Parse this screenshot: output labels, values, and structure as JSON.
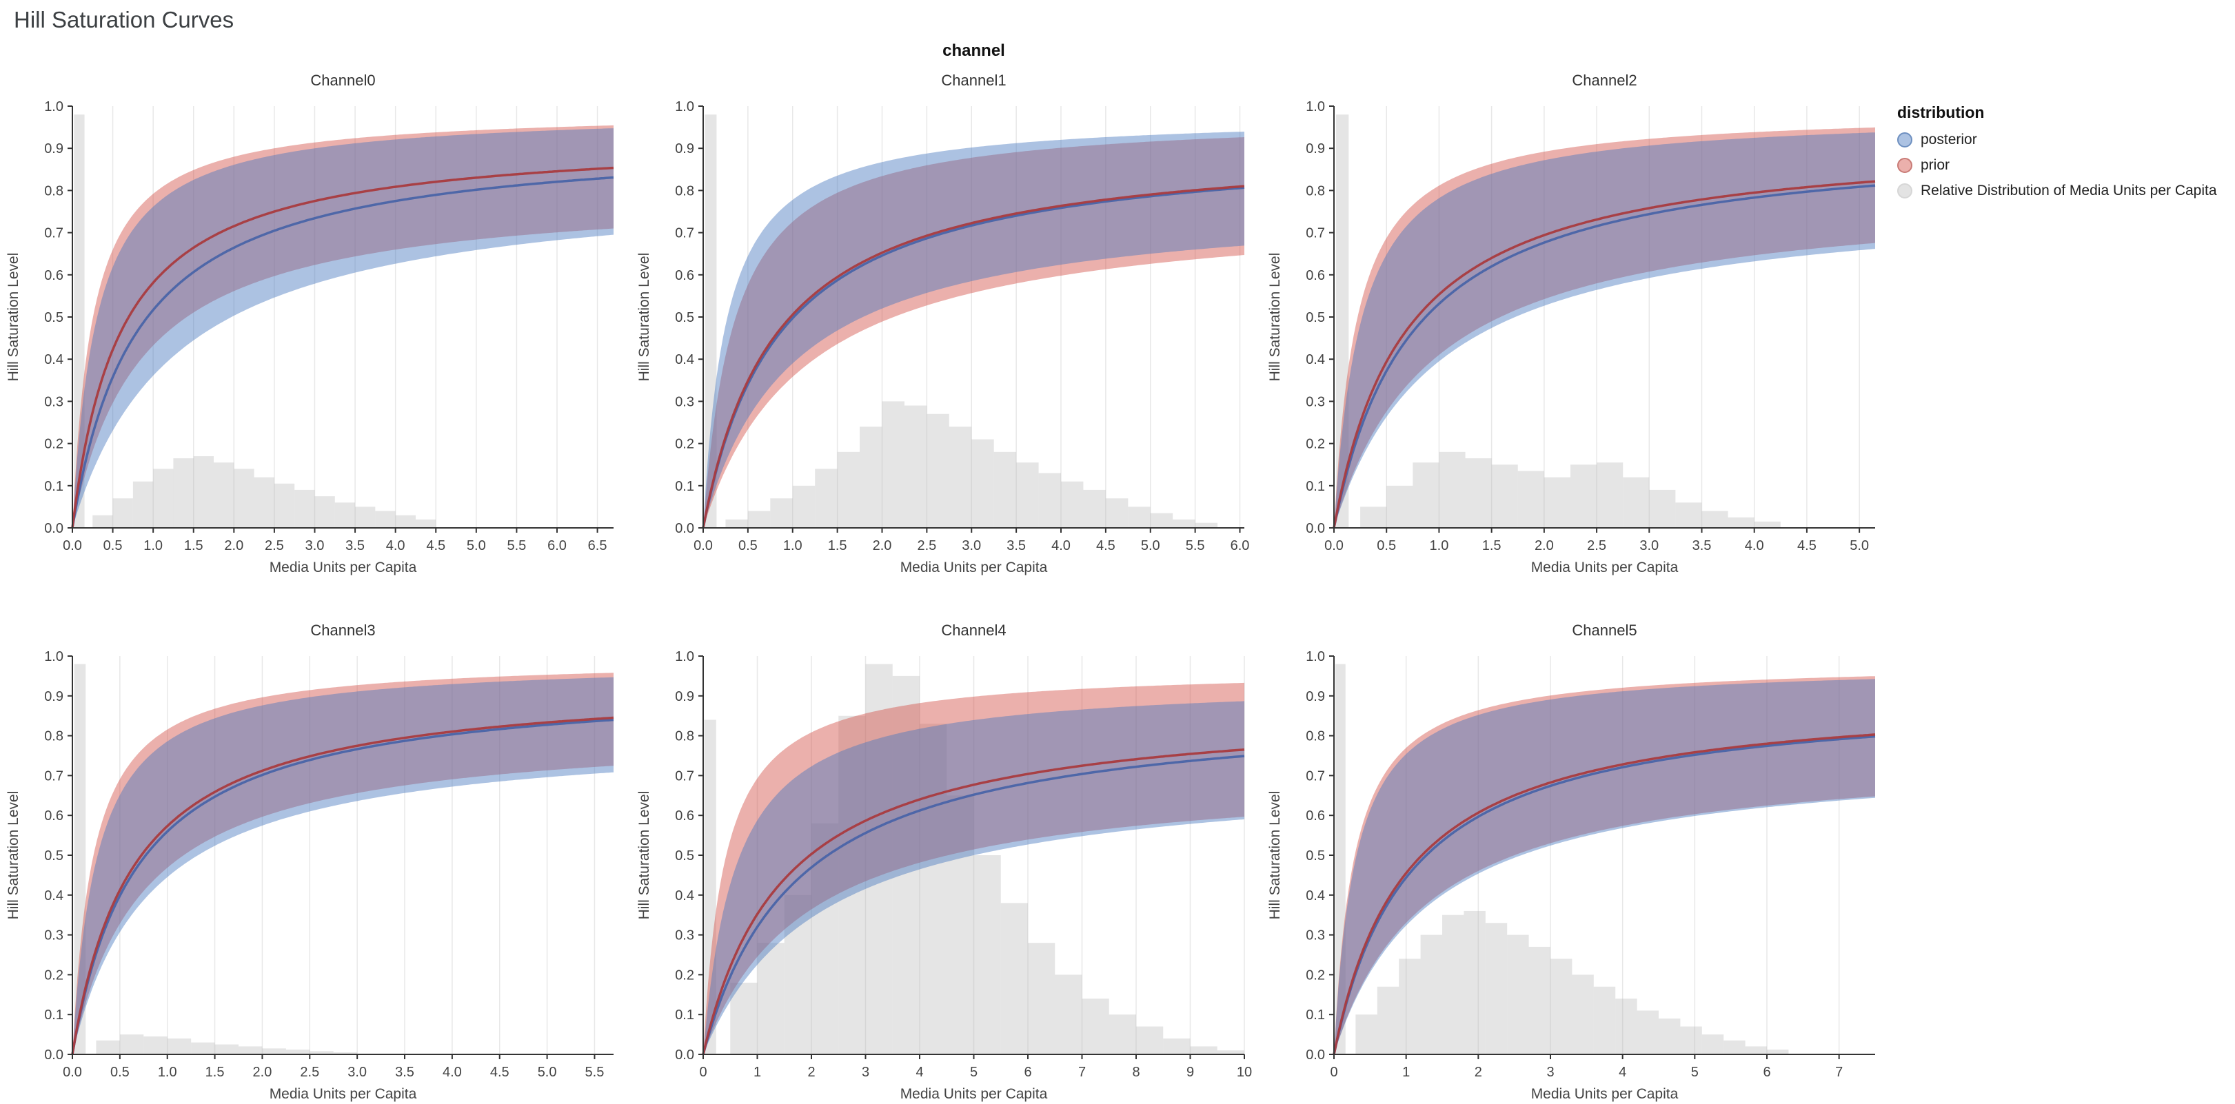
{
  "page": {
    "title": "Hill Saturation Curves"
  },
  "facet_title": "channel",
  "legend": {
    "title": "distribution",
    "items": [
      {
        "label": "posterior",
        "fill": "rgba(70,120,190,0.45)",
        "stroke": "#6d8fc0"
      },
      {
        "label": "prior",
        "fill": "rgba(210,80,70,0.45)",
        "stroke": "#c97b76"
      },
      {
        "label": "Relative Distribution of Media Units per Capita",
        "fill": "#e3e3e3",
        "stroke": "#d6d6d6"
      }
    ]
  },
  "colors": {
    "posterior_line": "#4a64a8",
    "posterior_fill": "#4678be",
    "prior_line": "#a93b3f",
    "prior_fill": "#d25046",
    "band_alpha": 0.45,
    "hist_fill": "#b4b4b4",
    "hist_alpha": 0.35,
    "grid": "#e8e8e8",
    "axis": "#333333",
    "tick_text": "#444444",
    "title_text": "#333333"
  },
  "chart_data": {
    "type": "line",
    "subtype": "hill-saturation-curves-with-credible-bands-and-histogram",
    "curve_model": "y = a * x / (x + k)",
    "x_label": "Media Units per Capita",
    "y_label": "Hill Saturation Level",
    "y_lim": [
      0,
      1
    ],
    "y_ticks": [
      0,
      0.1,
      0.2,
      0.3,
      0.4,
      0.5,
      0.6,
      0.7,
      0.8,
      0.9,
      1.0
    ],
    "legend_position": "top-right",
    "grid": "vertical-only",
    "panels": [
      {
        "title": "Channel0",
        "x_max": 6.7,
        "x_tick_decimals": 1,
        "x_ticks": [
          0,
          0.5,
          1,
          1.5,
          2,
          2.5,
          3,
          3.5,
          4,
          4.5,
          5,
          5.5,
          6,
          6.5
        ],
        "posterior": {
          "mean": {
            "a": 0.93,
            "k": 0.8
          },
          "upper": {
            "a": 0.99,
            "k": 0.3
          },
          "lower": {
            "a": 0.83,
            "k": 1.3
          }
        },
        "prior": {
          "mean": {
            "a": 0.93,
            "k": 0.6
          },
          "upper": {
            "a": 0.99,
            "k": 0.25
          },
          "lower": {
            "a": 0.8,
            "k": 0.85
          }
        },
        "histogram": {
          "spike": {
            "x": 0.02,
            "w": 0.13,
            "h": 0.98
          },
          "bin_start": 0.25,
          "bin_width": 0.25,
          "heights": [
            0.03,
            0.07,
            0.11,
            0.14,
            0.165,
            0.17,
            0.155,
            0.14,
            0.12,
            0.105,
            0.09,
            0.075,
            0.06,
            0.05,
            0.04,
            0.03,
            0.02
          ]
        }
      },
      {
        "title": "Channel1",
        "x_max": 6.05,
        "x_tick_decimals": 1,
        "x_ticks": [
          0,
          0.5,
          1,
          1.5,
          2,
          2.5,
          3,
          3.5,
          4,
          4.5,
          5,
          5.5,
          6
        ],
        "posterior": {
          "mean": {
            "a": 0.92,
            "k": 0.85
          },
          "upper": {
            "a": 0.98,
            "k": 0.26
          },
          "lower": {
            "a": 0.78,
            "k": 1.0
          }
        },
        "prior": {
          "mean": {
            "a": 0.92,
            "k": 0.82
          },
          "upper": {
            "a": 0.98,
            "k": 0.35
          },
          "lower": {
            "a": 0.77,
            "k": 1.15
          }
        },
        "histogram": {
          "spike": {
            "x": 0.02,
            "w": 0.13,
            "h": 0.98
          },
          "bin_start": 0.25,
          "bin_width": 0.25,
          "heights": [
            0.02,
            0.04,
            0.07,
            0.1,
            0.14,
            0.18,
            0.24,
            0.3,
            0.29,
            0.27,
            0.24,
            0.21,
            0.18,
            0.155,
            0.13,
            0.11,
            0.09,
            0.07,
            0.05,
            0.035,
            0.02,
            0.012
          ]
        }
      },
      {
        "title": "Channel2",
        "x_max": 5.15,
        "x_tick_decimals": 1,
        "x_ticks": [
          0,
          0.5,
          1,
          1.5,
          2,
          2.5,
          3,
          3.5,
          4,
          4.5,
          5
        ],
        "posterior": {
          "mean": {
            "a": 0.93,
            "k": 0.75
          },
          "upper": {
            "a": 0.985,
            "k": 0.26
          },
          "lower": {
            "a": 0.79,
            "k": 1.0
          }
        },
        "prior": {
          "mean": {
            "a": 0.93,
            "k": 0.68
          },
          "upper": {
            "a": 0.99,
            "k": 0.22
          },
          "lower": {
            "a": 0.8,
            "k": 0.95
          }
        },
        "histogram": {
          "spike": {
            "x": 0.02,
            "w": 0.12,
            "h": 0.98
          },
          "bin_start": 0.25,
          "bin_width": 0.25,
          "heights": [
            0.05,
            0.1,
            0.155,
            0.18,
            0.165,
            0.15,
            0.135,
            0.12,
            0.15,
            0.155,
            0.12,
            0.09,
            0.06,
            0.04,
            0.025,
            0.015
          ]
        }
      },
      {
        "title": "Channel3",
        "x_max": 5.7,
        "x_tick_decimals": 1,
        "x_ticks": [
          0,
          0.5,
          1,
          1.5,
          2,
          2.5,
          3,
          3.5,
          4,
          4.5,
          5,
          5.5
        ],
        "posterior": {
          "mean": {
            "a": 0.94,
            "k": 0.68
          },
          "upper": {
            "a": 0.99,
            "k": 0.26
          },
          "lower": {
            "a": 0.81,
            "k": 0.82
          }
        },
        "prior": {
          "mean": {
            "a": 0.94,
            "k": 0.64
          },
          "upper": {
            "a": 0.995,
            "k": 0.22
          },
          "lower": {
            "a": 0.82,
            "k": 0.75
          }
        },
        "histogram": {
          "spike": {
            "x": 0.02,
            "w": 0.12,
            "h": 0.98
          },
          "bin_start": 0.25,
          "bin_width": 0.25,
          "heights": [
            0.035,
            0.05,
            0.045,
            0.04,
            0.03,
            0.025,
            0.02,
            0.015,
            0.012,
            0.008,
            0.005
          ]
        }
      },
      {
        "title": "Channel4",
        "x_max": 10,
        "x_tick_decimals": 0,
        "x_ticks": [
          0,
          1,
          2,
          3,
          4,
          5,
          6,
          7,
          8,
          9,
          10
        ],
        "posterior": {
          "mean": {
            "a": 0.88,
            "k": 1.75
          },
          "upper": {
            "a": 0.94,
            "k": 0.6
          },
          "lower": {
            "a": 0.72,
            "k": 2.2
          }
        },
        "prior": {
          "mean": {
            "a": 0.88,
            "k": 1.5
          },
          "upper": {
            "a": 0.97,
            "k": 0.4
          },
          "lower": {
            "a": 0.71,
            "k": 1.9
          }
        },
        "histogram": {
          "spike": {
            "x": 0.02,
            "w": 0.22,
            "h": 0.84
          },
          "bin_start": 0.5,
          "bin_width": 0.5,
          "heights": [
            0.18,
            0.28,
            0.4,
            0.58,
            0.85,
            0.98,
            0.95,
            0.83,
            0.65,
            0.5,
            0.38,
            0.28,
            0.2,
            0.14,
            0.1,
            0.07,
            0.04,
            0.02,
            0.01
          ]
        }
      },
      {
        "title": "Channel5",
        "x_max": 7.5,
        "x_tick_decimals": 0,
        "x_ticks": [
          0,
          1,
          2,
          3,
          4,
          5,
          6,
          7
        ],
        "posterior": {
          "mean": {
            "a": 0.91,
            "k": 1.05
          },
          "upper": {
            "a": 0.98,
            "k": 0.3
          },
          "lower": {
            "a": 0.76,
            "k": 1.35
          }
        },
        "prior": {
          "mean": {
            "a": 0.91,
            "k": 1.0
          },
          "upper": {
            "a": 0.985,
            "k": 0.28
          },
          "lower": {
            "a": 0.76,
            "k": 1.3
          }
        },
        "histogram": {
          "spike": {
            "x": 0.02,
            "w": 0.14,
            "h": 0.98
          },
          "bin_start": 0.3,
          "bin_width": 0.3,
          "heights": [
            0.1,
            0.17,
            0.24,
            0.3,
            0.35,
            0.36,
            0.33,
            0.3,
            0.27,
            0.24,
            0.2,
            0.17,
            0.14,
            0.11,
            0.09,
            0.07,
            0.05,
            0.035,
            0.02,
            0.012
          ]
        }
      }
    ]
  }
}
